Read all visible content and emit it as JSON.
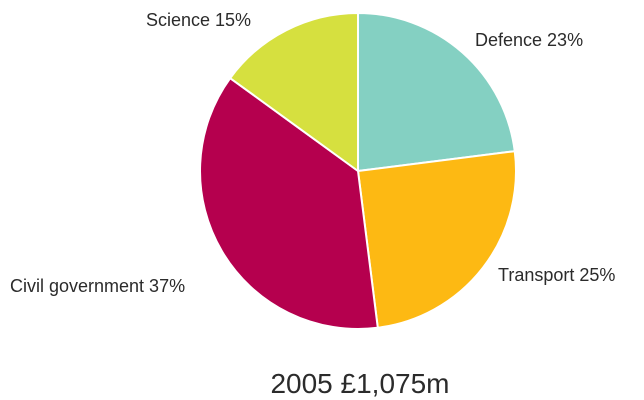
{
  "chart_data": {
    "type": "pie",
    "title": "2005 £1,075m",
    "slices": [
      {
        "label": "Defence 23%",
        "value": 23,
        "color": "#84D0C2"
      },
      {
        "label": "Transport 25%",
        "value": 25,
        "color": "#FDB913"
      },
      {
        "label": "Civil government 37%",
        "value": 37,
        "color": "#B5004E"
      },
      {
        "label": "Science 15%",
        "value": 15,
        "color": "#D6E03F"
      }
    ]
  }
}
